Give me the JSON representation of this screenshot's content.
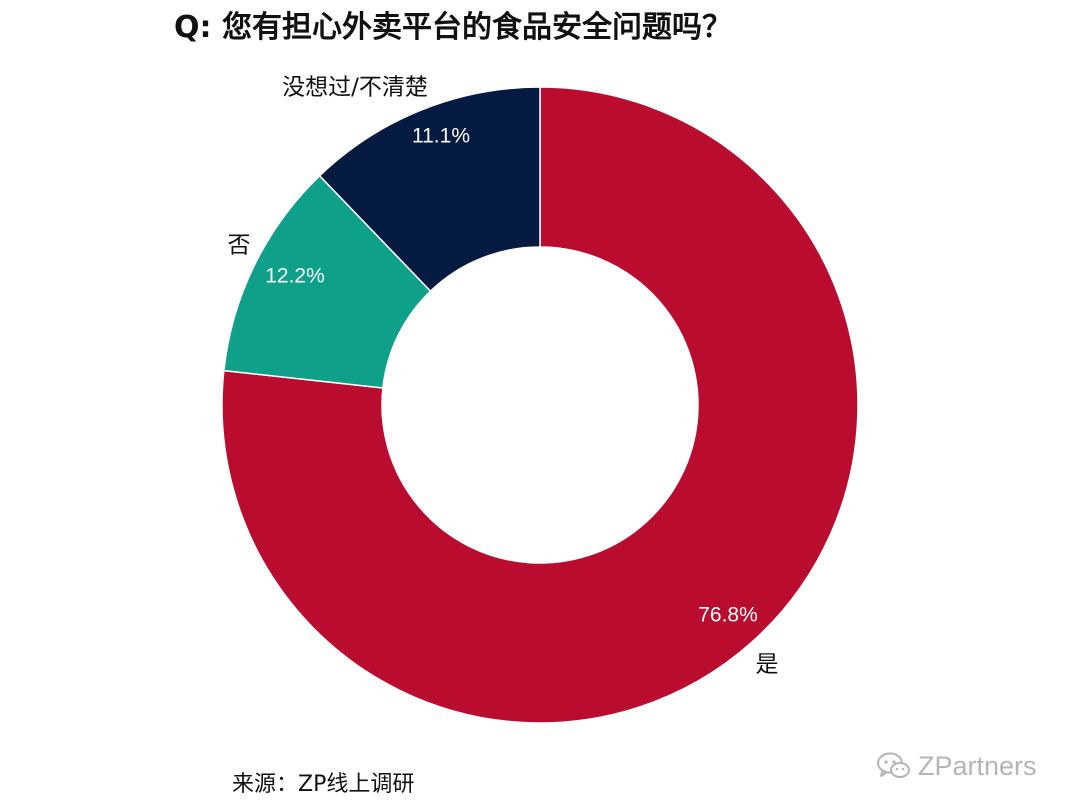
{
  "chart_data": {
    "type": "pie",
    "donut": true,
    "title": "Q: 您有担心外卖平台的食品安全问题吗？",
    "slices": [
      {
        "label": "是",
        "value": 76.8,
        "value_label": "76.8%",
        "color": "#BA0C2F"
      },
      {
        "label": "没想过/不清楚",
        "value": 11.1,
        "value_label": "11.1%",
        "color": "#0FA08A"
      },
      {
        "label": "否",
        "value": 12.2,
        "value_label": "12.2%",
        "color": "#041A40"
      }
    ],
    "legend": "none",
    "data_labels": "inside slices, category names outside"
  },
  "footer": {
    "source": "来源：ZP线上调研"
  },
  "watermark": {
    "text": "ZPartners",
    "icon": "wechat-icon"
  }
}
